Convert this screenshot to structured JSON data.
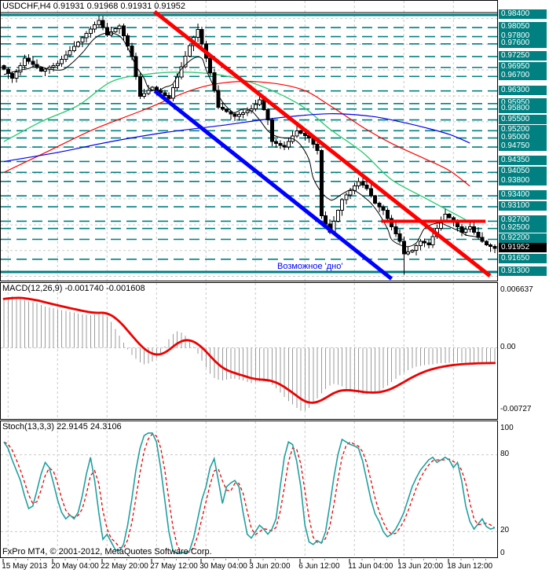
{
  "colors": {
    "teal_level": "#008080",
    "grid": "#c9c9c9",
    "candle_up_fill": "#ffffff",
    "candle_down_fill": "#000000",
    "candle_stroke": "#000000",
    "macd_hist": "#9b9b9b",
    "macd_signal": "#ee0000",
    "stoch_k": "#20a0a0",
    "stoch_d": "#ee0000",
    "annotation_blue": "#0000ff",
    "badge_current_bg": "#000000"
  },
  "footer": {
    "copyright": "FxPro MT4, © 2001-2012, MetaQuotes Software Corp."
  },
  "chart_data": {
    "type": "candlestick",
    "symbol": "USDCHF",
    "timeframe": "H4",
    "grid_bars": [
      1,
      13,
      25,
      37,
      49,
      61,
      73,
      85,
      97,
      109
    ],
    "x_labels": [
      {
        "bar": 1,
        "label": "15 May 2013"
      },
      {
        "bar": 13,
        "label": "20 May 04:00"
      },
      {
        "bar": 25,
        "label": "22 May 20:00"
      },
      {
        "bar": 37,
        "label": "27 May 12:00"
      },
      {
        "bar": 49,
        "label": "30 May 04:00"
      },
      {
        "bar": 61,
        "label": "3 Jun 20:00"
      },
      {
        "bar": 73,
        "label": "6 Jun 12:00"
      },
      {
        "bar": 85,
        "label": "11 Jun 04:00"
      },
      {
        "bar": 97,
        "label": "13 Jun 20:00"
      },
      {
        "bar": 109,
        "label": "18 Jun 12:00"
      }
    ],
    "panels": [
      {
        "id": "price",
        "title": "USDCHF,H4 0.91931 0.91968 0.91931 0.91952",
        "ylim": [
          0.9106,
          0.9879
        ],
        "levels": [
          {
            "p": 0.984,
            "style": "solid"
          },
          {
            "p": 0.9805
          },
          {
            "p": 0.978
          },
          {
            "p": 0.976
          },
          {
            "p": 0.9725
          },
          {
            "p": 0.9695
          },
          {
            "p": 0.967
          },
          {
            "p": 0.963
          },
          {
            "p": 0.9595
          },
          {
            "p": 0.958
          },
          {
            "p": 0.955
          },
          {
            "p": 0.952
          },
          {
            "p": 0.95
          },
          {
            "p": 0.9475
          },
          {
            "p": 0.9435
          },
          {
            "p": 0.9405
          },
          {
            "p": 0.938
          },
          {
            "p": 0.934
          },
          {
            "p": 0.931
          },
          {
            "p": 0.927
          },
          {
            "p": 0.925
          },
          {
            "p": 0.922
          },
          {
            "p": 0.9165
          },
          {
            "p": 0.913,
            "style": "solid"
          }
        ],
        "grid_prices": [
          0.983,
          0.9759,
          0.9688,
          0.9616,
          0.9545,
          0.9474,
          0.9403,
          0.9332,
          0.926,
          0.9189,
          0.9118
        ],
        "first_open": 0.97,
        "closes": [
          0.969,
          0.9678,
          0.9665,
          0.9683,
          0.97,
          0.972,
          0.9712,
          0.9703,
          0.9694,
          0.9685,
          0.969,
          0.9695,
          0.97,
          0.9705,
          0.9717,
          0.9729,
          0.9741,
          0.9753,
          0.9765,
          0.9777,
          0.9789,
          0.9801,
          0.9813,
          0.9825,
          0.9805,
          0.9785,
          0.9793,
          0.9802,
          0.981,
          0.9782,
          0.9754,
          0.9725,
          0.967,
          0.9615,
          0.9623,
          0.9632,
          0.964,
          0.9632,
          0.9625,
          0.9617,
          0.961,
          0.9639,
          0.9668,
          0.9697,
          0.9726,
          0.9755,
          0.9778,
          0.98,
          0.976,
          0.972,
          0.968,
          0.9632,
          0.9585,
          0.9579,
          0.9573,
          0.9566,
          0.956,
          0.9565,
          0.957,
          0.9575,
          0.958,
          0.9592,
          0.9605,
          0.9578,
          0.955,
          0.949,
          0.9485,
          0.948,
          0.9475,
          0.949,
          0.9505,
          0.952,
          0.9513,
          0.9507,
          0.95,
          0.9483,
          0.9465,
          0.9285,
          0.9262,
          0.924,
          0.927,
          0.93,
          0.933,
          0.9343,
          0.9355,
          0.9368,
          0.938,
          0.937,
          0.936,
          0.934,
          0.932,
          0.931,
          0.93,
          0.9278,
          0.9255,
          0.9235,
          0.9215,
          0.918,
          0.9185,
          0.919,
          0.9203,
          0.9215,
          0.921,
          0.9205,
          0.9228,
          0.925,
          0.927,
          0.929,
          0.928,
          0.927,
          0.9255,
          0.924,
          0.9248,
          0.9255,
          0.924,
          0.9225,
          0.9215,
          0.9205,
          0.92,
          0.9195
        ],
        "wick_overrides": {
          "23": {
            "high": 0.9838
          },
          "47": {
            "high": 0.9816
          },
          "77": {
            "high": 0.947
          },
          "97": {
            "low": 0.9122
          }
        },
        "current_price": 0.91952,
        "current_price_label": "0.91952",
        "ma": [
          {
            "name": "ma-fast-black",
            "color": "#000000",
            "width": 1,
            "points": [
              [
                0,
                0.9675
              ],
              [
                3,
                0.9685
              ],
              [
                6,
                0.9692
              ],
              [
                8,
                0.97
              ],
              [
                11,
                0.969
              ],
              [
                14,
                0.9688
              ],
              [
                16,
                0.9702
              ],
              [
                19,
                0.9735
              ],
              [
                22,
                0.9775
              ],
              [
                25,
                0.979
              ],
              [
                28,
                0.9782
              ],
              [
                30,
                0.975
              ],
              [
                32,
                0.97
              ],
              [
                34,
                0.9665
              ],
              [
                35,
                0.964
              ],
              [
                37,
                0.963
              ],
              [
                39,
                0.964
              ],
              [
                41,
                0.965
              ],
              [
                43,
                0.969
              ],
              [
                46,
                0.972
              ],
              [
                48,
                0.972
              ],
              [
                49,
                0.969
              ],
              [
                51,
                0.964
              ],
              [
                53,
                0.96
              ],
              [
                55,
                0.9575
              ],
              [
                56,
                0.957
              ],
              [
                58,
                0.958
              ],
              [
                60,
                0.9575
              ],
              [
                62,
                0.955
              ],
              [
                64,
                0.952
              ],
              [
                66,
                0.9505
              ],
              [
                68,
                0.95
              ],
              [
                70,
                0.9498
              ],
              [
                72,
                0.948
              ],
              [
                74,
                0.944
              ],
              [
                75,
                0.939
              ],
              [
                77,
                0.935
              ],
              [
                79,
                0.933
              ],
              [
                80,
                0.933
              ],
              [
                82,
                0.9345
              ],
              [
                84,
                0.9357
              ],
              [
                85,
                0.9355
              ],
              [
                87,
                0.934
              ],
              [
                89,
                0.932
              ],
              [
                91,
                0.929
              ],
              [
                93,
                0.925
              ],
              [
                94,
                0.922
              ],
              [
                96,
                0.9205
              ],
              [
                98,
                0.92
              ],
              [
                100,
                0.921
              ],
              [
                101,
                0.923
              ],
              [
                102,
                0.925
              ],
              [
                104,
                0.9262
              ],
              [
                106,
                0.9265
              ],
              [
                107,
                0.926
              ],
              [
                109,
                0.925
              ],
              [
                111,
                0.924
              ],
              [
                112,
                0.9232
              ],
              [
                114,
                0.9228
              ],
              [
                116,
                0.9224
              ]
            ]
          },
          {
            "name": "ma-green",
            "color": "#33cc77",
            "width": 1.4,
            "points": [
              [
                0,
                0.949
              ],
              [
                9,
                0.9545
              ],
              [
                18,
                0.959
              ],
              [
                26,
                0.9655
              ],
              [
                34,
                0.9675
              ],
              [
                43,
                0.9682
              ],
              [
                53,
                0.9673
              ],
              [
                62,
                0.9645
              ],
              [
                72,
                0.959
              ],
              [
                79,
                0.9525
              ],
              [
                87,
                0.946
              ],
              [
                94,
                0.9385
              ],
              [
                102,
                0.9335
              ],
              [
                112,
                0.9274
              ]
            ]
          },
          {
            "name": "ma-red",
            "color": "#ff0000",
            "width": 1.2,
            "points": [
              [
                0,
                0.9405
              ],
              [
                11,
                0.9465
              ],
              [
                22,
                0.9525
              ],
              [
                34,
                0.9578
              ],
              [
                45,
                0.963
              ],
              [
                53,
                0.9652
              ],
              [
                62,
                0.9655
              ],
              [
                72,
                0.9635
              ],
              [
                79,
                0.959
              ],
              [
                87,
                0.953
              ],
              [
                94,
                0.9485
              ],
              [
                102,
                0.9443
              ],
              [
                108,
                0.941
              ],
              [
                113,
                0.9367
              ]
            ]
          },
          {
            "name": "ma-blue",
            "color": "#0000ee",
            "width": 1.2,
            "points": [
              [
                0,
                0.9435
              ],
              [
                13,
                0.946
              ],
              [
                26,
                0.949
              ],
              [
                39,
                0.9515
              ],
              [
                53,
                0.9535
              ],
              [
                66,
                0.9555
              ],
              [
                79,
                0.9567
              ],
              [
                89,
                0.956
              ],
              [
                96,
                0.9545
              ],
              [
                102,
                0.9529
              ],
              [
                108,
                0.951
              ],
              [
                113,
                0.9486
              ]
            ]
          }
        ],
        "trendlines": [
          {
            "name": "downtrend-red",
            "color": "#ff0000",
            "width": 5,
            "from": [
              36.5,
              0.9849
            ],
            "to": [
              117.9,
              0.9119
            ]
          },
          {
            "name": "downtrend-blue",
            "color": "#0000ff",
            "width": 5,
            "from": [
              36.6,
              0.963
            ],
            "to": [
              94.0,
              0.9111
            ]
          },
          {
            "name": "resistance-red",
            "color": "#ff0000",
            "width": 4,
            "from": [
              91.5,
              0.927
            ],
            "to": [
              116.8,
              0.927
            ]
          }
        ],
        "annotation": {
          "text": "Возможное 'дно'",
          "color": "#0000ff"
        }
      },
      {
        "id": "macd",
        "label": "MACD(12,26,9) -0.001740 -0.001608",
        "ylim": [
          -0.00828,
          0.00755
        ],
        "ticks": [
          {
            "value": 0.006637,
            "label": "0.006637"
          },
          {
            "value": 0,
            "label": "0.00",
            "dashed": true
          },
          {
            "value": -0.00727,
            "label": "-0.00727"
          }
        ],
        "values": [
          0.0057,
          0.0059,
          0.006,
          0.0059,
          0.0058,
          0.0056,
          0.0054,
          0.0053,
          0.0052,
          0.005,
          0.0048,
          0.0047,
          0.0046,
          0.0045,
          0.0044,
          0.0043,
          0.0042,
          0.0041,
          0.004,
          0.0039,
          0.00385,
          0.0038,
          0.0039,
          0.004,
          0.0041,
          0.0036,
          0.003,
          0.0022,
          0.0014,
          0.0006,
          -0.0002,
          -0.0008,
          -0.0013,
          -0.0017,
          -0.0019,
          -0.00185,
          -0.0016,
          -0.0012,
          -0.0006,
          0.0002,
          0.001,
          0.0016,
          0.0019,
          0.0018,
          0.0014,
          0.0008,
          0.0001,
          -0.0007,
          -0.0015,
          -0.0023,
          -0.003,
          -0.0035,
          -0.0037,
          -0.0038,
          -0.0037,
          -0.0036,
          -0.0036,
          -0.0037,
          -0.0038,
          -0.004,
          -0.0041,
          -0.004,
          -0.0039,
          -0.0039,
          -0.004,
          -0.0043,
          -0.0047,
          -0.0052,
          -0.0057,
          -0.0062,
          -0.0066,
          -0.007,
          -0.0073,
          -0.0073,
          -0.007,
          -0.0065,
          -0.0059,
          -0.0053,
          -0.0048,
          -0.0044,
          -0.0042,
          -0.0043,
          -0.0045,
          -0.0048,
          -0.005,
          -0.0052,
          -0.0053,
          -0.0054,
          -0.0054,
          -0.0053,
          -0.0052,
          -0.005,
          -0.0047,
          -0.0044,
          -0.004,
          -0.0036,
          -0.0032,
          -0.0029,
          -0.0026,
          -0.0024,
          -0.0022,
          -0.0021,
          -0.002,
          -0.00195,
          -0.0019,
          -0.00185,
          -0.0018,
          -0.00178,
          -0.00176,
          -0.00175,
          -0.00174,
          -0.00174,
          -0.00174,
          -0.00174,
          -0.00174,
          -0.00174,
          -0.00174,
          -0.00174,
          -0.00174,
          -0.00174
        ]
      },
      {
        "id": "stoch",
        "label": "Stoch(13,3,3) 22.9145 24.3106",
        "ylim": [
          0,
          100
        ],
        "ticks": [
          {
            "value": 100,
            "label": "100"
          },
          {
            "value": 80,
            "label": "80",
            "dashed": true
          },
          {
            "value": 20,
            "label": "20",
            "dashed": true
          },
          {
            "value": 0,
            "label": "0"
          }
        ],
        "k_values": [
          90,
          85,
          76,
          68,
          60,
          48,
          38,
          40,
          52,
          65,
          74,
          70,
          58,
          45,
          35,
          30,
          33,
          30,
          35,
          48,
          65,
          78,
          60,
          35,
          14,
          18,
          12,
          6,
          5,
          10,
          25,
          45,
          68,
          85,
          95,
          97,
          97,
          90,
          70,
          45,
          20,
          5,
          3,
          4,
          3,
          5,
          15,
          30,
          45,
          55,
          70,
          77,
          60,
          42,
          55,
          58,
          60,
          55,
          35,
          18,
          15,
          20,
          25,
          22,
          18,
          22,
          30,
          55,
          78,
          90,
          88,
          75,
          55,
          25,
          12,
          10,
          13,
          11,
          20,
          40,
          62,
          80,
          92,
          90,
          88,
          87,
          85,
          75,
          60,
          45,
          34,
          28,
          20,
          16,
          18,
          22,
          28,
          35,
          45,
          55,
          62,
          68,
          72,
          76,
          78,
          74,
          76,
          78,
          76,
          70,
          74,
          60,
          40,
          28,
          22,
          26,
          30,
          24,
          22,
          23
        ]
      }
    ]
  }
}
